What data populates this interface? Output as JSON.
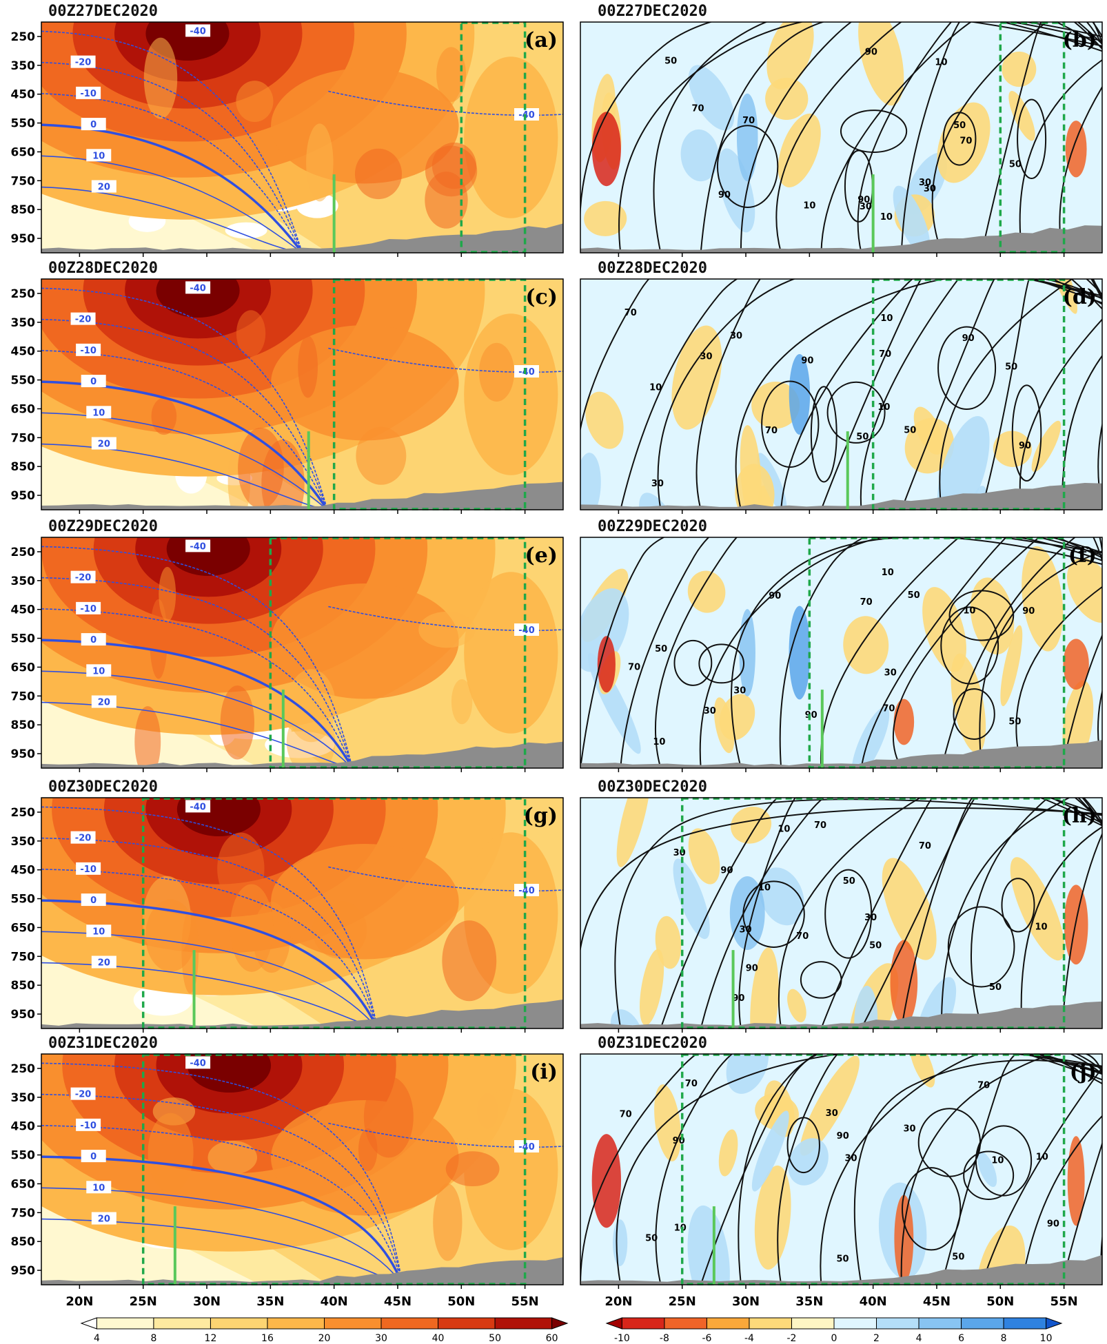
{
  "chart_data": {
    "type": "heatmap",
    "description_axes": {
      "y_ticks": [
        "250",
        "350",
        "450",
        "550",
        "650",
        "750",
        "850",
        "950"
      ],
      "x_ticks": [
        "20N",
        "25N",
        "30N",
        "35N",
        "40N",
        "45N",
        "50N",
        "55N"
      ],
      "x_range": [
        17,
        58
      ],
      "y_range": [
        200,
        1000
      ]
    },
    "panels": [
      {
        "label": "(a)",
        "time": "00Z27DEC2020",
        "box_x": [
          50,
          55
        ],
        "marker_x": 40,
        "contours": [
          {
            "value": "-40",
            "style": "dash"
          },
          {
            "value": "-20",
            "style": "dash"
          },
          {
            "value": "-10",
            "style": "dash"
          },
          {
            "value": "0",
            "style": "bold"
          },
          {
            "value": "10",
            "style": "solid"
          },
          {
            "value": "20",
            "style": "solid"
          }
        ]
      },
      {
        "label": "(b)",
        "time": "00Z27DEC2020",
        "box_x": [
          50,
          55
        ],
        "marker_x": 40,
        "contours": [
          {
            "value": "10"
          },
          {
            "value": "30"
          },
          {
            "value": "50"
          },
          {
            "value": "70"
          },
          {
            "value": "90"
          }
        ]
      },
      {
        "label": "(c)",
        "time": "00Z28DEC2020",
        "box_x": [
          40,
          55
        ],
        "marker_x": 38,
        "contours": [
          {
            "value": "-40",
            "style": "dash"
          },
          {
            "value": "-20",
            "style": "dash"
          },
          {
            "value": "-10",
            "style": "dash"
          },
          {
            "value": "0",
            "style": "bold"
          },
          {
            "value": "10",
            "style": "solid"
          },
          {
            "value": "20",
            "style": "solid"
          }
        ]
      },
      {
        "label": "(d)",
        "time": "00Z28DEC2020",
        "box_x": [
          40,
          55
        ],
        "marker_x": 38,
        "contours": [
          {
            "value": "10"
          },
          {
            "value": "30"
          },
          {
            "value": "50"
          },
          {
            "value": "70"
          },
          {
            "value": "90"
          }
        ]
      },
      {
        "label": "(e)",
        "time": "00Z29DEC2020",
        "box_x": [
          35,
          55
        ],
        "marker_x": 36,
        "contours": [
          {
            "value": "-40",
            "style": "dash"
          },
          {
            "value": "-20",
            "style": "dash"
          },
          {
            "value": "-10",
            "style": "dash"
          },
          {
            "value": "0",
            "style": "bold"
          },
          {
            "value": "10",
            "style": "solid"
          },
          {
            "value": "20",
            "style": "solid"
          }
        ]
      },
      {
        "label": "(f)",
        "time": "00Z29DEC2020",
        "box_x": [
          35,
          55
        ],
        "marker_x": 36,
        "contours": [
          {
            "value": "10"
          },
          {
            "value": "30"
          },
          {
            "value": "50"
          },
          {
            "value": "70"
          },
          {
            "value": "90"
          }
        ]
      },
      {
        "label": "(g)",
        "time": "00Z30DEC2020",
        "box_x": [
          25,
          55
        ],
        "marker_x": 29,
        "contours": [
          {
            "value": "-40",
            "style": "dash"
          },
          {
            "value": "-20",
            "style": "dash"
          },
          {
            "value": "-10",
            "style": "dash"
          },
          {
            "value": "0",
            "style": "bold"
          },
          {
            "value": "10",
            "style": "solid"
          },
          {
            "value": "20",
            "style": "solid"
          }
        ]
      },
      {
        "label": "(h)",
        "time": "00Z30DEC2020",
        "box_x": [
          25,
          55
        ],
        "marker_x": 29,
        "contours": [
          {
            "value": "10"
          },
          {
            "value": "30"
          },
          {
            "value": "50"
          },
          {
            "value": "70"
          },
          {
            "value": "90"
          }
        ]
      },
      {
        "label": "(i)",
        "time": "00Z31DEC2020",
        "box_x": [
          25,
          55
        ],
        "marker_x": 27.5,
        "contours": [
          {
            "value": "-40",
            "style": "dash"
          },
          {
            "value": "-20",
            "style": "dash"
          },
          {
            "value": "-10",
            "style": "dash"
          },
          {
            "value": "0",
            "style": "bold"
          },
          {
            "value": "10",
            "style": "solid"
          },
          {
            "value": "20",
            "style": "solid"
          }
        ]
      },
      {
        "label": "(j)",
        "time": "00Z31DEC2020",
        "box_x": [
          25,
          55
        ],
        "marker_x": 27.5,
        "contours": [
          {
            "value": "10"
          },
          {
            "value": "30"
          },
          {
            "value": "50"
          },
          {
            "value": "70"
          },
          {
            "value": "90"
          }
        ]
      }
    ],
    "colorbar_left": {
      "levels": [
        "4",
        "8",
        "12",
        "16",
        "20",
        "30",
        "40",
        "50",
        "60"
      ],
      "colors": [
        "#ffffff",
        "#fff8d0",
        "#feeaa0",
        "#fdd472",
        "#fdb74a",
        "#f98f2e",
        "#f06820",
        "#d83a12",
        "#b01208",
        "#7a0000"
      ]
    },
    "colorbar_right": {
      "levels": [
        "-10",
        "-8",
        "-6",
        "-4",
        "-2",
        "0",
        "2",
        "4",
        "6",
        "8",
        "10"
      ],
      "colors": [
        "#a30000",
        "#d8261a",
        "#f06428",
        "#fba83a",
        "#fdd97a",
        "#fff6c4",
        "#e0f6ff",
        "#b4def8",
        "#88c4f2",
        "#5ba6ea",
        "#2f82e0",
        "#1256cc"
      ]
    },
    "style": {
      "contour_color": "#2f4fe0",
      "black_contour_color": "#111111",
      "box_color": "#1fa84a",
      "marker_color": "#5ac85a",
      "terrain_color": "#8c8c8c"
    }
  }
}
